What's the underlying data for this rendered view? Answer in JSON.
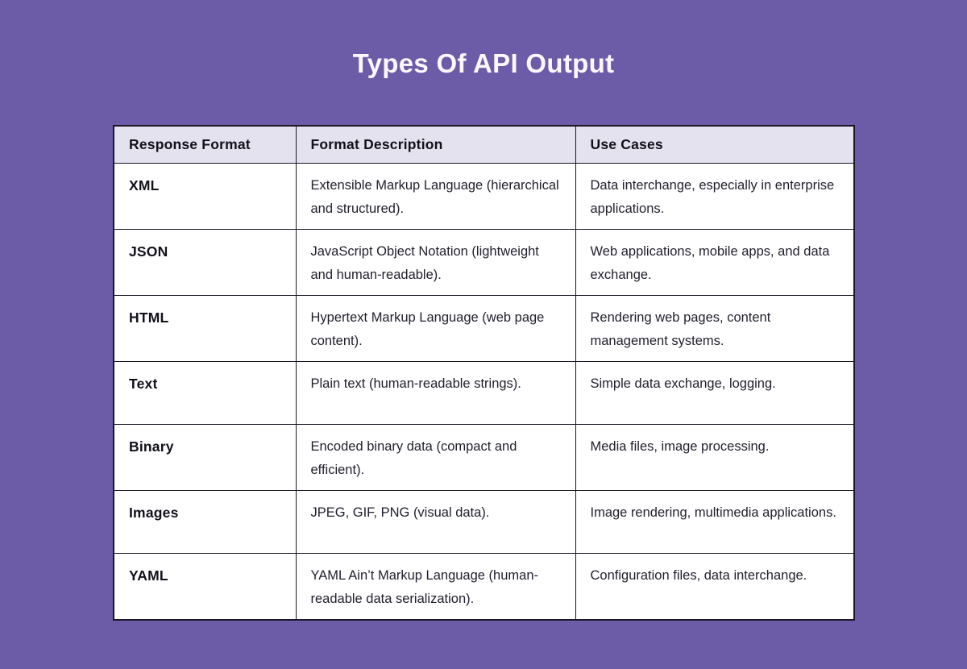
{
  "page": {
    "title": "Types Of API Output",
    "background_color": "#6C5CA8",
    "title_color": "#FAF8FC"
  },
  "table": {
    "header_bg": "#E5E2F0",
    "cell_bg": "#FFFFFF",
    "border_color": "#1B1526",
    "headers": [
      "Response Format",
      "Format Description",
      "Use Cases"
    ],
    "rows": [
      {
        "format": "XML",
        "description": "Extensible Markup Language (hierarchical and structured).",
        "use_cases": "Data interchange, especially in enterprise applications."
      },
      {
        "format": "JSON",
        "description": "JavaScript Object Notation (lightweight and human-readable).",
        "use_cases": "Web applications, mobile apps, and data exchange."
      },
      {
        "format": "HTML",
        "description": "Hypertext Markup Language (web page content).",
        "use_cases": "Rendering web pages, content management systems."
      },
      {
        "format": "Text",
        "description": "Plain text (human-readable strings).",
        "use_cases": "Simple data exchange, logging."
      },
      {
        "format": "Binary",
        "description": "Encoded binary data (compact and efficient).",
        "use_cases": "Media files, image processing."
      },
      {
        "format": "Images",
        "description": "JPEG, GIF, PNG (visual data).",
        "use_cases": "Image rendering, multimedia applications."
      },
      {
        "format": "YAML",
        "description": "YAML Ain’t Markup Language (human-readable data serialization).",
        "use_cases": "Configuration files, data interchange."
      }
    ]
  },
  "chart_data": {
    "type": "table",
    "title": "Types Of API Output",
    "columns": [
      "Response Format",
      "Format Description",
      "Use Cases"
    ],
    "rows": [
      [
        "XML",
        "Extensible Markup Language (hierarchical and structured).",
        "Data interchange, especially in enterprise applications."
      ],
      [
        "JSON",
        "JavaScript Object Notation (lightweight and human-readable).",
        "Web applications, mobile apps, and data exchange."
      ],
      [
        "HTML",
        "Hypertext Markup Language (web page content).",
        "Rendering web pages, content management systems."
      ],
      [
        "Text",
        "Plain text (human-readable strings).",
        "Simple data exchange, logging."
      ],
      [
        "Binary",
        "Encoded binary data (compact and efficient).",
        "Media files, image processing."
      ],
      [
        "Images",
        "JPEG, GIF, PNG (visual data).",
        "Image rendering, multimedia applications."
      ],
      [
        "YAML",
        "YAML Ain’t Markup Language (human-readable data serialization).",
        "Configuration files, data interchange."
      ]
    ]
  }
}
